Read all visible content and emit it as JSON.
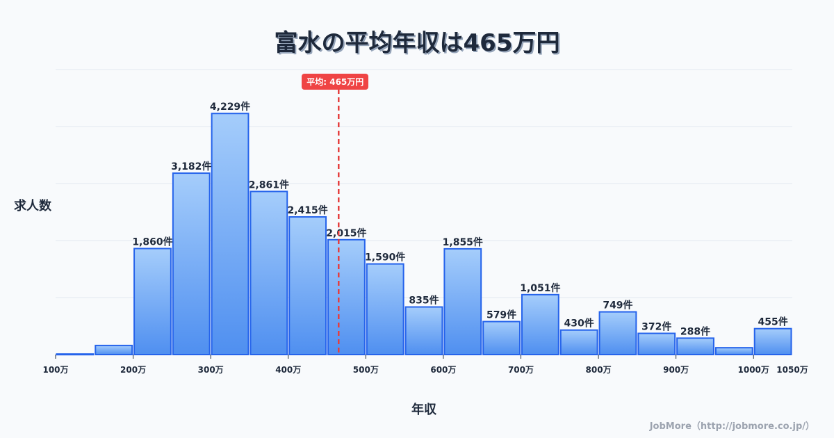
{
  "title": "富水の平均年収は465万円",
  "ylabel": "求人数",
  "xlabel": "年収",
  "footer": "JobMore（http://jobmore.co.jp/）",
  "average_badge": "平均: 465万円",
  "colors": {
    "bar_top": "#a5cdfb",
    "bar_bottom": "#4f8ff0",
    "bar_stroke": "#2563eb",
    "average_line": "#e53e3e",
    "grid": "#e2e8f0",
    "text": "#1e293b"
  },
  "chart_data": {
    "type": "bar",
    "title": "富水の平均年収は465万円",
    "xlabel": "年収",
    "ylabel": "求人数",
    "bin_edges_man_yen": [
      100,
      150,
      200,
      250,
      300,
      350,
      400,
      450,
      500,
      550,
      600,
      650,
      700,
      750,
      800,
      850,
      900,
      950,
      1000,
      1050
    ],
    "categories": [
      "100-150万",
      "150-200万",
      "200-250万",
      "250-300万",
      "300-350万",
      "350-400万",
      "400-450万",
      "450-500万",
      "500-550万",
      "550-600万",
      "600-650万",
      "650-700万",
      "700-750万",
      "750-800万",
      "800-850万",
      "850-900万",
      "900-950万",
      "950-1000万",
      "1000-1050万"
    ],
    "values": [
      10,
      160,
      1860,
      3182,
      4229,
      2861,
      2415,
      2015,
      1590,
      835,
      1855,
      579,
      1051,
      430,
      749,
      372,
      288,
      120,
      455
    ],
    "labels": [
      "",
      "",
      "1,860件",
      "3,182件",
      "4,229件",
      "2,861件",
      "2,415件",
      "2,015件",
      "1,590件",
      "835件",
      "1,855件",
      "579件",
      "1,051件",
      "430件",
      "749件",
      "372件",
      "288件",
      "",
      "455件"
    ],
    "x_ticks": [
      "100万",
      "200万",
      "300万",
      "400万",
      "500万",
      "600万",
      "700万",
      "800万",
      "900万",
      "1000万",
      "1050万"
    ],
    "x_tick_values": [
      100,
      200,
      300,
      400,
      500,
      600,
      700,
      800,
      900,
      1000,
      1050
    ],
    "ylim": [
      0,
      5000
    ],
    "grid_y": [
      1000,
      2000,
      3000,
      4000,
      5000
    ],
    "grid": true,
    "average": 465,
    "average_label": "平均: 465万円"
  }
}
